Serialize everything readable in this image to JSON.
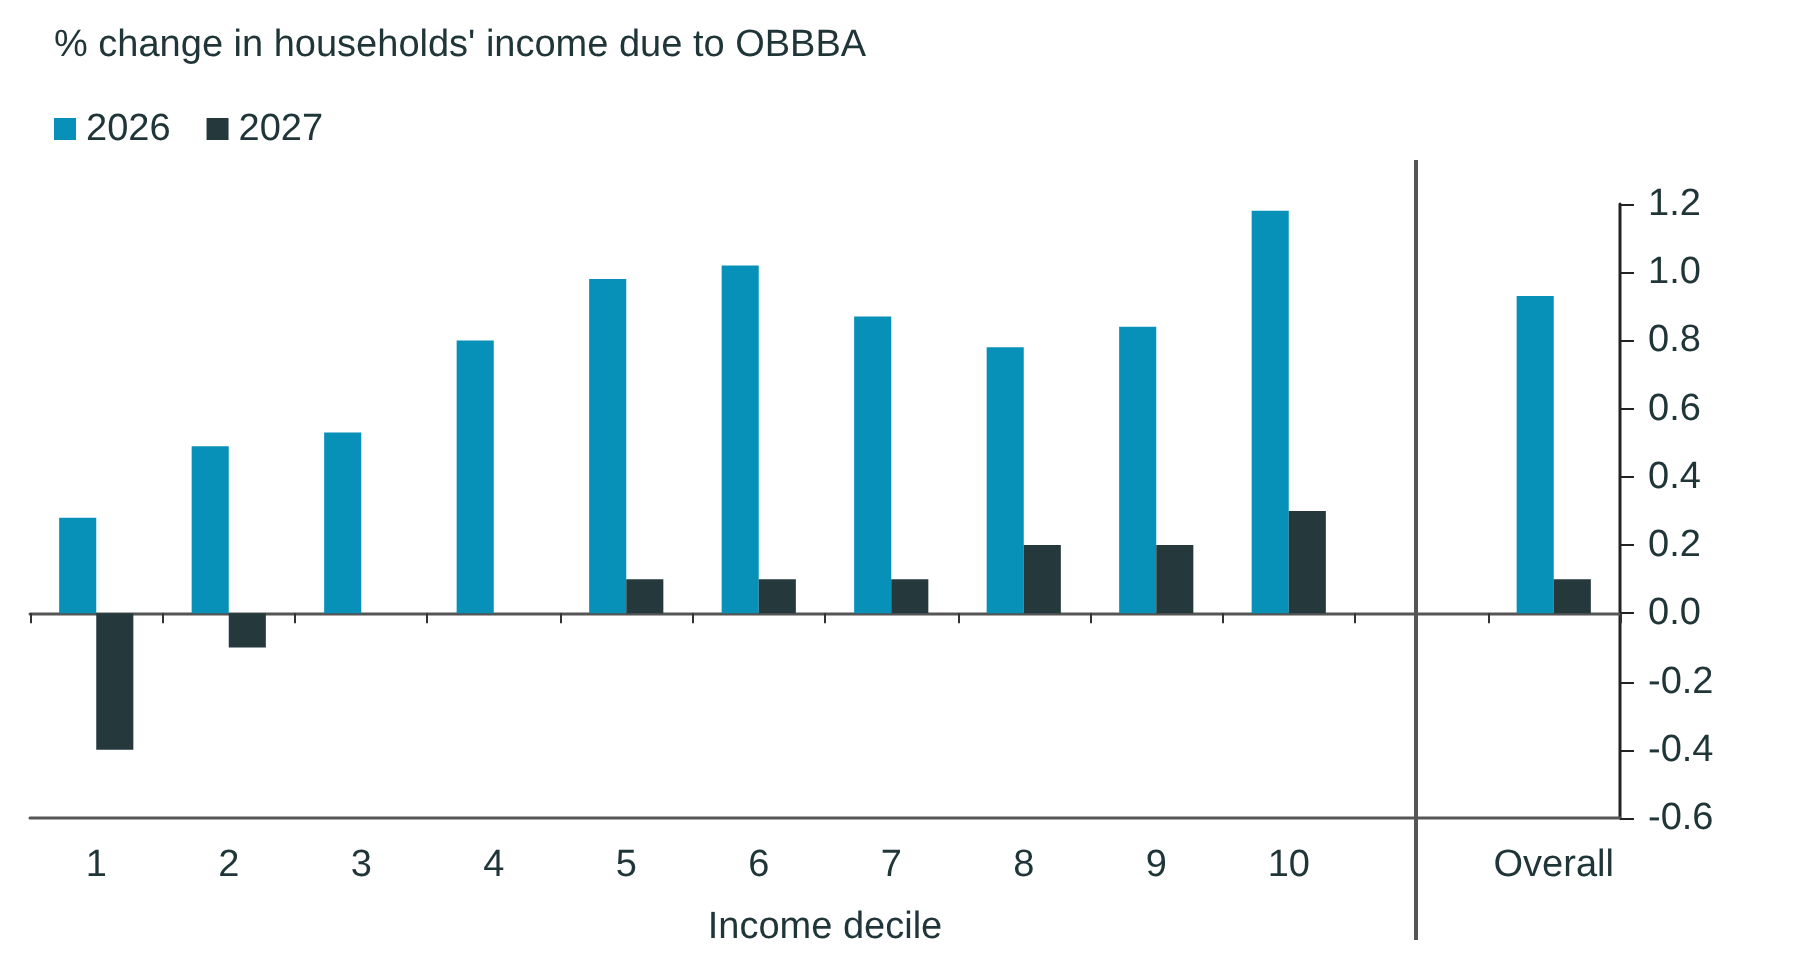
{
  "chart_data": {
    "type": "bar",
    "title": "% change in households' income due to OBBBA",
    "xlabel": "Income decile",
    "categories": [
      "1",
      "2",
      "3",
      "4",
      "5",
      "6",
      "7",
      "8",
      "9",
      "10",
      null,
      "Overall"
    ],
    "series": [
      {
        "name": "2026",
        "color": "#0790b8",
        "values": [
          0.28,
          0.49,
          0.53,
          0.8,
          0.98,
          1.02,
          0.87,
          0.78,
          0.84,
          1.18,
          null,
          0.93
        ]
      },
      {
        "name": "2027",
        "color": "#25393d",
        "values": [
          -0.4,
          -0.1,
          0,
          0,
          0.1,
          0.1,
          0.1,
          0.2,
          0.2,
          0.3,
          null,
          0.1
        ]
      }
    ],
    "ylim": [
      -0.6,
      1.2
    ],
    "yticks": [
      {
        "value": -0.6,
        "label": "-0.6"
      },
      {
        "value": -0.4,
        "label": "-0.4"
      },
      {
        "value": -0.2,
        "label": "-0.2"
      },
      {
        "value": 0,
        "label": "0.0"
      },
      {
        "value": 0.2,
        "label": "0.2"
      },
      {
        "value": 0.4,
        "label": "0.4"
      },
      {
        "value": 0.6,
        "label": "0.6"
      },
      {
        "value": 0.8,
        "label": "0.8"
      },
      {
        "value": 1,
        "label": "1.0"
      },
      {
        "value": 1.2,
        "label": "1.2"
      }
    ],
    "legend": "top left"
  }
}
